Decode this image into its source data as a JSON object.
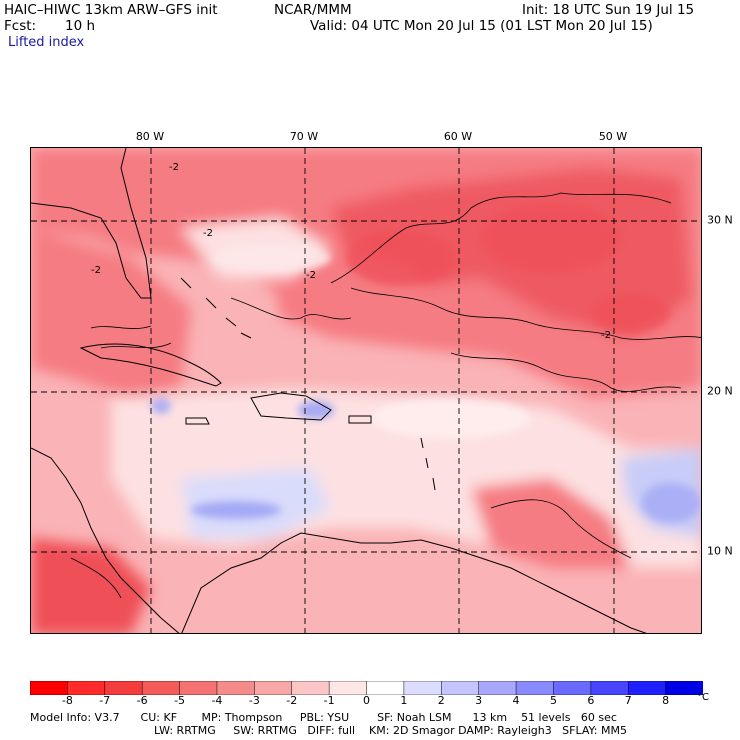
{
  "header": {
    "model": "HAIC–HIWC 13km ARW–GFS init",
    "center": "NCAR/MMM",
    "init": "Init: 18 UTC Sun 19 Jul 15",
    "fcst_label": "Fcst:",
    "fcst_value": "10 h",
    "valid": "Valid: 04 UTC Mon 20 Jul 15 (01 LST Mon 20 Jul 15)",
    "field": "Lifted index"
  },
  "map": {
    "longitudes": [
      "80 W",
      "70 W",
      "60 W",
      "50 W"
    ],
    "latitudes": [
      "30 N",
      "20 N",
      "10 N"
    ],
    "contour_labels": [
      "-2",
      "-2",
      "-2",
      "-2",
      "-2"
    ],
    "colors": {
      "strong_neg": "#ef4f57",
      "mid_neg": "#f57b82",
      "weak_neg": "#fab3b6",
      "near_zero": "#fde1e2",
      "pos_weak": "#d9dcfb",
      "pos_mid": "#9ea4f5",
      "land_line": "#000000"
    }
  },
  "colorbar": {
    "labels": [
      "-8",
      "-7",
      "-6",
      "-5",
      "-4",
      "-3",
      "-2",
      "-1",
      "0",
      "1",
      "2",
      "3",
      "4",
      "5",
      "6",
      "7",
      "8"
    ],
    "unit": "°C",
    "colors": [
      "#ff0000",
      "#ff2a2a",
      "#f43c3c",
      "#f45a5a",
      "#f57272",
      "#f58c8c",
      "#f8a6a6",
      "#fbc6c6",
      "#ffe6e6",
      "#ffffff",
      "#dcdcff",
      "#c4c4ff",
      "#a8a8ff",
      "#8a8aff",
      "#6a6aff",
      "#4646ff",
      "#2020ff",
      "#0000e6"
    ]
  },
  "footer": {
    "line1": "Model Info: V3.7      CU: KF       MP: Thompson     PBL: YSU        SF: Noah LSM      13 km    51 levels   60 sec",
    "line2": "LW: RRTMG     SW: RRTMG   DIFF: full    KM: 2D Smagor DAMP: Rayleigh3   SFLAY: MM5"
  }
}
